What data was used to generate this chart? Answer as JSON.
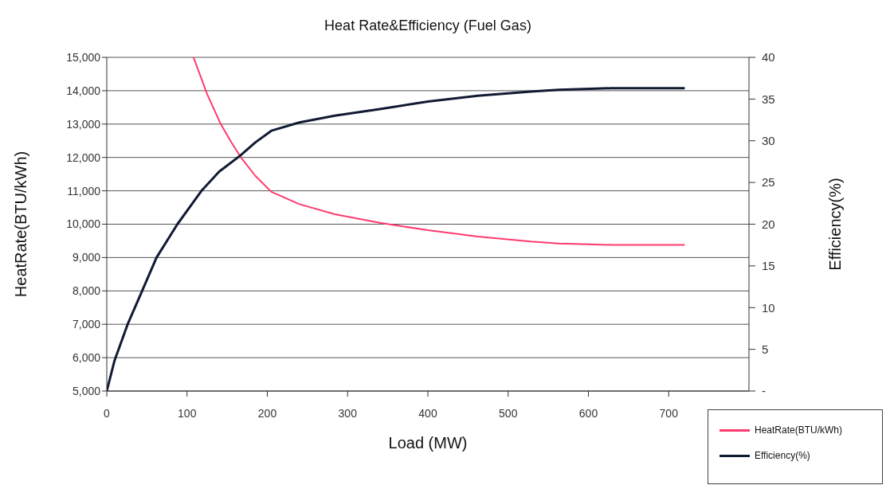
{
  "chart_data": {
    "type": "line",
    "title": "Heat Rate&Efficiency (Fuel Gas)",
    "xlabel": "Load (MW)",
    "ylabel": "HeatRate(BTU/kWh)",
    "y2label": "Efficiency(%)",
    "xlim": [
      0,
      800
    ],
    "xticks": [
      0,
      100,
      200,
      300,
      400,
      500,
      600,
      700
    ],
    "ylim": [
      5000,
      15000
    ],
    "yticks": [
      {
        "value": 5000,
        "label": "5,000"
      },
      {
        "value": 6000,
        "label": "6,000"
      },
      {
        "value": 7000,
        "label": "7,000"
      },
      {
        "value": 8000,
        "label": "8,000"
      },
      {
        "value": 9000,
        "label": "9,000"
      },
      {
        "value": 10000,
        "label": "10,000"
      },
      {
        "value": 11000,
        "label": "11,000"
      },
      {
        "value": 12000,
        "label": "12,000"
      },
      {
        "value": 13000,
        "label": "13,000"
      },
      {
        "value": 14000,
        "label": "14,000"
      },
      {
        "value": 15000,
        "label": "15,000"
      }
    ],
    "y2lim": [
      0,
      40
    ],
    "y2ticks": [
      {
        "value": 0,
        "label": "-"
      },
      5,
      10,
      15,
      20,
      25,
      30,
      35,
      40
    ],
    "grid": "y",
    "legend": "bottom right",
    "marker": "none",
    "line_style": "solid",
    "series": [
      {
        "name": "HeatRate(BTU/kWh)",
        "color": "#ff3a6e",
        "x": [
          108,
          125,
          142,
          154,
          166,
          185,
          205,
          240,
          284,
          340,
          400,
          462,
          528,
          563,
          628,
          720
        ],
        "values": [
          15000,
          13900,
          13000,
          12500,
          12040,
          11450,
          10970,
          10600,
          10300,
          10040,
          9820,
          9630,
          9480,
          9420,
          9380,
          9380
        ]
      },
      {
        "name": "Efficiency(%)",
        "color": "#111a33",
        "axis": "y2",
        "x": [
          0,
          9.5,
          26,
          44,
          62,
          88,
          118,
          140,
          166,
          185,
          205,
          240,
          284,
          340,
          400,
          462,
          528,
          563,
          628,
          720
        ],
        "values": [
          0,
          3.6,
          8,
          12,
          16,
          20,
          24,
          26.3,
          28.2,
          29.8,
          31.2,
          32.2,
          33,
          33.8,
          34.7,
          35.4,
          35.9,
          36.1,
          36.3,
          36.3
        ]
      }
    ]
  }
}
